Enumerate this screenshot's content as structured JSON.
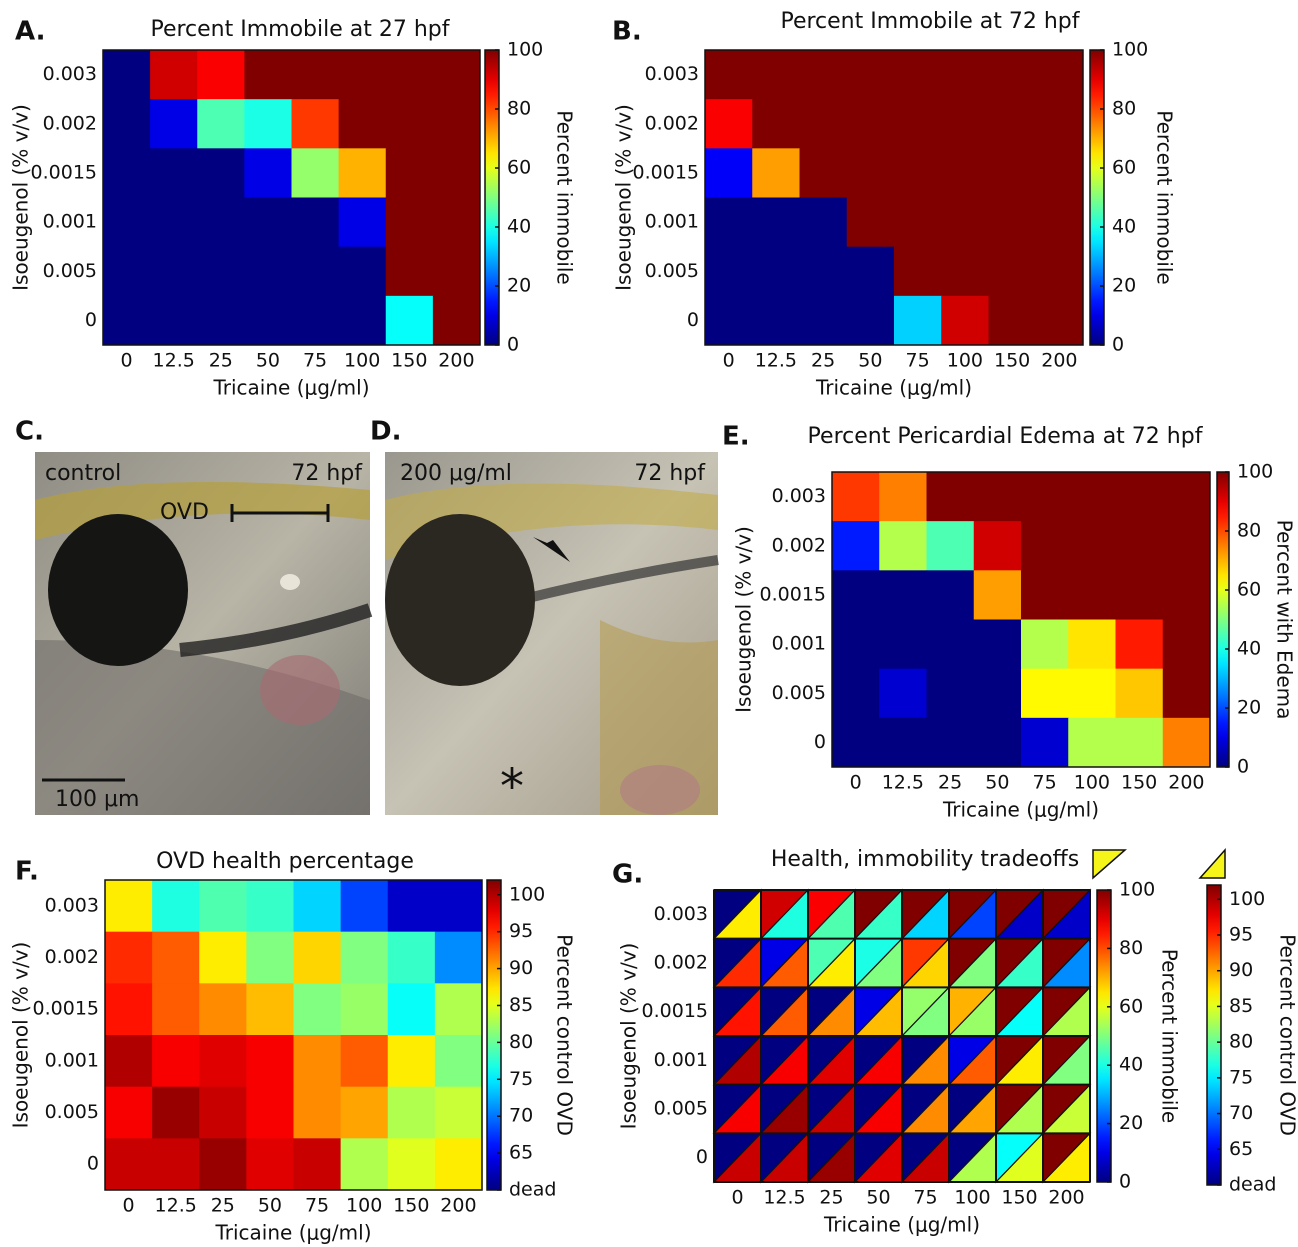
{
  "chart_data": [
    {
      "type": "heatmap",
      "panel_label": "A.",
      "title": "Percent Immobile at 27 hpf",
      "x_label": "Tricaine (μg/ml)",
      "y_label": "Isoeugenol (% v/v)",
      "x_categories": [
        "0",
        "12.5",
        "25",
        "50",
        "75",
        "100",
        "150",
        "200"
      ],
      "y_categories": [
        "0.003",
        "0.002",
        "0.0015",
        "0.001",
        "0.005",
        "0"
      ],
      "values": [
        [
          0,
          92,
          88,
          100,
          100,
          100,
          100,
          100
        ],
        [
          0,
          10,
          45,
          40,
          82,
          100,
          100,
          100
        ],
        [
          0,
          0,
          0,
          10,
          52,
          70,
          100,
          100
        ],
        [
          0,
          0,
          0,
          0,
          0,
          10,
          100,
          100
        ],
        [
          0,
          0,
          0,
          0,
          0,
          0,
          100,
          100
        ],
        [
          0,
          0,
          0,
          0,
          0,
          0,
          38,
          100
        ]
      ],
      "colormap": "jet",
      "colorbar": {
        "label": "Percent immobile",
        "lim": [
          0,
          100
        ],
        "ticks": [
          0,
          20,
          40,
          60,
          80,
          100
        ]
      }
    },
    {
      "type": "heatmap",
      "panel_label": "B.",
      "title": "Percent Immobile at 72 hpf",
      "x_label": "Tricaine (μg/ml)",
      "y_label": "Isoeugenol (% v/v)",
      "x_categories": [
        "0",
        "12.5",
        "25",
        "50",
        "75",
        "100",
        "150",
        "200"
      ],
      "y_categories": [
        "0.003",
        "0.002",
        "0.0015",
        "0.001",
        "0.005",
        "0"
      ],
      "values": [
        [
          100,
          100,
          100,
          100,
          100,
          100,
          100,
          100
        ],
        [
          88,
          100,
          100,
          100,
          100,
          100,
          100,
          100
        ],
        [
          12,
          72,
          100,
          100,
          100,
          100,
          100,
          100
        ],
        [
          0,
          0,
          0,
          100,
          100,
          100,
          100,
          100
        ],
        [
          0,
          0,
          0,
          0,
          100,
          100,
          100,
          100
        ],
        [
          0,
          0,
          0,
          0,
          33,
          92,
          100,
          100
        ]
      ],
      "colormap": "jet",
      "colorbar": {
        "label": "Percent immobile",
        "lim": [
          0,
          100
        ],
        "ticks": [
          0,
          20,
          40,
          60,
          80,
          100
        ]
      }
    },
    {
      "type": "heatmap",
      "panel_label": "E.",
      "title": "Percent Pericardial Edema at 72 hpf",
      "x_label": "Tricaine (μg/ml)",
      "y_label": "Isoeugenol (% v/v)",
      "x_categories": [
        "0",
        "12.5",
        "25",
        "50",
        "75",
        "100",
        "150",
        "200"
      ],
      "y_categories": [
        "0.003",
        "0.002",
        "0.0015",
        "0.001",
        "0.005",
        "0"
      ],
      "values": [
        [
          82,
          75,
          100,
          100,
          100,
          100,
          100,
          100
        ],
        [
          15,
          55,
          45,
          92,
          100,
          100,
          100,
          100
        ],
        [
          0,
          0,
          0,
          72,
          100,
          100,
          100,
          100
        ],
        [
          0,
          0,
          0,
          0,
          55,
          65,
          85,
          100
        ],
        [
          0,
          8,
          0,
          0,
          63,
          63,
          68,
          100
        ],
        [
          0,
          0,
          0,
          0,
          8,
          55,
          55,
          75
        ]
      ],
      "colormap": "jet",
      "colorbar": {
        "label": "Percent with Edema",
        "lim": [
          0,
          100
        ],
        "ticks": [
          0,
          20,
          40,
          60,
          80,
          100
        ]
      }
    },
    {
      "type": "heatmap",
      "panel_label": "F.",
      "title": "OVD health percentage",
      "x_label": "Tricaine (μg/ml)",
      "y_label": "Isoeugenol (% v/v)",
      "x_categories": [
        "0",
        "12.5",
        "25",
        "50",
        "75",
        "100",
        "150",
        "200"
      ],
      "y_categories": [
        "0.003",
        "0.002",
        "0.0015",
        "0.001",
        "0.005",
        "0"
      ],
      "values": [
        [
          87,
          77,
          79,
          78,
          74,
          68,
          63,
          63
        ],
        [
          95,
          93,
          87,
          81,
          88,
          81,
          78,
          71
        ],
        [
          96,
          93,
          91,
          89,
          81,
          82,
          76,
          83
        ],
        [
          100,
          97,
          98,
          97,
          91,
          93,
          87,
          81
        ],
        [
          97,
          101,
          99,
          97,
          91,
          90,
          83,
          84
        ],
        [
          99,
          99,
          101,
          98,
          99,
          83,
          85,
          87
        ]
      ],
      "colormap": "jet",
      "colorbar": {
        "label": "Percent control OVD",
        "lim": [
          60,
          102
        ],
        "ticks": [
          {
            "value": 60,
            "label": "dead"
          },
          65,
          70,
          75,
          80,
          85,
          90,
          95,
          100
        ]
      }
    },
    {
      "type": "split-heatmap",
      "panel_label": "G.",
      "title": "Health, immobility tradeoffs",
      "x_label": "Tricaine (μg/ml)",
      "y_label": "Isoeugenol (% v/v)",
      "x_categories": [
        "0",
        "12.5",
        "25",
        "50",
        "75",
        "100",
        "150",
        "200"
      ],
      "y_categories": [
        "0.003",
        "0.002",
        "0.0015",
        "0.001",
        "0.005",
        "0"
      ],
      "colormap": "jet",
      "series": [
        {
          "name": "Percent immobile",
          "lim": [
            0,
            100
          ],
          "ticks": [
            0,
            20,
            40,
            60,
            80,
            100
          ],
          "values": [
            [
              0,
              92,
              88,
              100,
              100,
              100,
              100,
              100
            ],
            [
              0,
              10,
              45,
              40,
              82,
              100,
              100,
              100
            ],
            [
              0,
              0,
              0,
              10,
              52,
              70,
              100,
              100
            ],
            [
              0,
              0,
              0,
              0,
              0,
              10,
              100,
              100
            ],
            [
              0,
              0,
              0,
              0,
              0,
              0,
              100,
              100
            ],
            [
              0,
              0,
              0,
              0,
              0,
              0,
              38,
              100
            ]
          ]
        },
        {
          "name": "Percent control OVD",
          "lim": [
            60,
            102
          ],
          "ticks": [
            {
              "value": 60,
              "label": "dead"
            },
            65,
            70,
            75,
            80,
            85,
            90,
            95,
            100
          ],
          "values": [
            [
              87,
              77,
              79,
              78,
              74,
              68,
              63,
              63
            ],
            [
              95,
              93,
              87,
              81,
              88,
              81,
              78,
              71
            ],
            [
              96,
              93,
              91,
              89,
              81,
              82,
              76,
              83
            ],
            [
              100,
              97,
              98,
              97,
              91,
              93,
              87,
              81
            ],
            [
              97,
              101,
              99,
              97,
              91,
              90,
              83,
              84
            ],
            [
              99,
              99,
              101,
              98,
              99,
              83,
              85,
              87
            ]
          ]
        }
      ]
    }
  ],
  "photos": [
    {
      "panel_label": "C.",
      "left_text": "control",
      "right_text": "72 hpf",
      "annotation": "OVD",
      "scale_text": "100 μm"
    },
    {
      "panel_label": "D.",
      "left_text": "200 μg/ml",
      "right_text": "72 hpf",
      "annotation": "*"
    }
  ]
}
